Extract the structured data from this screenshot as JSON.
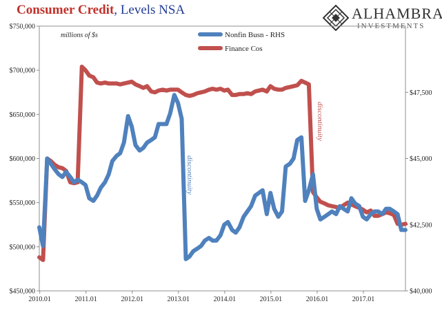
{
  "header": {
    "title_main": "Consumer Credit",
    "title_rest": ", Levels NSA"
  },
  "logo": {
    "name": "ALHAMBRA",
    "subtitle": "INVESTMENTS",
    "icon": "alhambra-diamond-lattice-icon"
  },
  "chart_data": {
    "type": "line",
    "unit_note": "millions of $s",
    "left_axis": {
      "min": 450000,
      "max": 750000,
      "ticks": [
        "$450,000",
        "$500,000",
        "$550,000",
        "$600,000",
        "$650,000",
        "$700,000",
        "$750,000"
      ]
    },
    "right_axis": {
      "min": 40000,
      "max": 50000,
      "ticks": [
        "$40,000",
        "$42,500",
        "$45,000",
        "$47,500"
      ]
    },
    "x_axis": {
      "start_year": 2010,
      "end_year": 2017.92,
      "ticks": [
        "2010.01",
        "2011.01",
        "2012.01",
        "2013.01",
        "2014.01",
        "2015.01",
        "2016.01",
        "2017.01"
      ]
    },
    "legend": {
      "placement": "top-center",
      "entries": [
        "Nonfin Busn - RHS",
        "Finance Cos"
      ]
    },
    "annotations": [
      {
        "text": "discontinuity",
        "color": "#4f81bd"
      },
      {
        "text": "discontinuity",
        "color": "#c0504d"
      }
    ],
    "colors": {
      "nonfin": "#4f81bd",
      "finance": "#c0504d"
    },
    "series": [
      {
        "name": "Finance Cos",
        "axis": "left",
        "points": [
          [
            2010.0,
            488000
          ],
          [
            2010.08,
            485000
          ],
          [
            2010.17,
            600000
          ],
          [
            2010.25,
            597000
          ],
          [
            2010.33,
            593000
          ],
          [
            2010.42,
            590000
          ],
          [
            2010.5,
            589000
          ],
          [
            2010.58,
            586000
          ],
          [
            2010.67,
            573000
          ],
          [
            2010.75,
            572000
          ],
          [
            2010.83,
            573000
          ],
          [
            2010.92,
            704000
          ],
          [
            2011.0,
            700000
          ],
          [
            2011.08,
            694000
          ],
          [
            2011.17,
            692000
          ],
          [
            2011.25,
            686000
          ],
          [
            2011.33,
            685000
          ],
          [
            2011.42,
            686000
          ],
          [
            2011.5,
            685000
          ],
          [
            2011.58,
            685000
          ],
          [
            2011.67,
            685000
          ],
          [
            2011.75,
            684000
          ],
          [
            2011.83,
            685000
          ],
          [
            2011.92,
            686000
          ],
          [
            2012.0,
            687000
          ],
          [
            2012.08,
            684000
          ],
          [
            2012.17,
            682000
          ],
          [
            2012.25,
            680000
          ],
          [
            2012.33,
            682000
          ],
          [
            2012.42,
            676000
          ],
          [
            2012.5,
            675000
          ],
          [
            2012.58,
            677000
          ],
          [
            2012.67,
            678000
          ],
          [
            2012.75,
            677000
          ],
          [
            2012.83,
            678000
          ],
          [
            2012.92,
            678000
          ],
          [
            2013.0,
            678000
          ],
          [
            2013.08,
            675000
          ],
          [
            2013.17,
            672000
          ],
          [
            2013.25,
            671000
          ],
          [
            2013.33,
            672000
          ],
          [
            2013.42,
            674000
          ],
          [
            2013.5,
            675000
          ],
          [
            2013.58,
            676000
          ],
          [
            2013.67,
            678000
          ],
          [
            2013.75,
            679000
          ],
          [
            2013.83,
            678000
          ],
          [
            2013.92,
            679000
          ],
          [
            2014.0,
            677000
          ],
          [
            2014.08,
            678000
          ],
          [
            2014.17,
            672000
          ],
          [
            2014.25,
            672000
          ],
          [
            2014.33,
            673000
          ],
          [
            2014.42,
            673000
          ],
          [
            2014.5,
            674000
          ],
          [
            2014.58,
            673000
          ],
          [
            2014.67,
            676000
          ],
          [
            2014.75,
            677000
          ],
          [
            2014.83,
            678000
          ],
          [
            2014.92,
            676000
          ],
          [
            2015.0,
            682000
          ],
          [
            2015.08,
            679000
          ],
          [
            2015.17,
            678000
          ],
          [
            2015.25,
            678000
          ],
          [
            2015.33,
            680000
          ],
          [
            2015.42,
            681000
          ],
          [
            2015.5,
            682000
          ],
          [
            2015.58,
            683000
          ],
          [
            2015.67,
            688000
          ],
          [
            2015.75,
            686000
          ],
          [
            2015.83,
            684000
          ],
          [
            2015.92,
            562000
          ],
          [
            2016.0,
            556000
          ],
          [
            2016.08,
            551000
          ],
          [
            2016.17,
            549000
          ],
          [
            2016.25,
            547000
          ],
          [
            2016.33,
            546000
          ],
          [
            2016.42,
            545000
          ],
          [
            2016.5,
            544000
          ],
          [
            2016.58,
            547000
          ],
          [
            2016.67,
            550000
          ],
          [
            2016.75,
            548000
          ],
          [
            2016.83,
            546000
          ],
          [
            2016.92,
            544000
          ],
          [
            2017.0,
            542000
          ],
          [
            2017.08,
            539000
          ],
          [
            2017.17,
            541000
          ],
          [
            2017.25,
            535000
          ],
          [
            2017.33,
            535000
          ],
          [
            2017.42,
            537000
          ],
          [
            2017.5,
            539000
          ],
          [
            2017.58,
            538000
          ],
          [
            2017.67,
            536000
          ],
          [
            2017.75,
            526000
          ],
          [
            2017.83,
            525000
          ],
          [
            2017.92,
            526000
          ]
        ]
      },
      {
        "name": "Nonfin Busn - RHS",
        "axis": "right",
        "points": [
          [
            2010.0,
            42400
          ],
          [
            2010.08,
            41700
          ],
          [
            2010.17,
            45000
          ],
          [
            2010.25,
            44800
          ],
          [
            2010.33,
            44600
          ],
          [
            2010.42,
            44400
          ],
          [
            2010.5,
            44300
          ],
          [
            2010.58,
            44500
          ],
          [
            2010.67,
            44300
          ],
          [
            2010.75,
            44100
          ],
          [
            2010.83,
            44200
          ],
          [
            2010.92,
            44100
          ],
          [
            2011.0,
            44000
          ],
          [
            2011.08,
            43500
          ],
          [
            2011.17,
            43400
          ],
          [
            2011.25,
            43600
          ],
          [
            2011.33,
            43900
          ],
          [
            2011.42,
            44100
          ],
          [
            2011.5,
            44400
          ],
          [
            2011.58,
            44900
          ],
          [
            2011.67,
            45100
          ],
          [
            2011.75,
            45200
          ],
          [
            2011.83,
            45600
          ],
          [
            2011.92,
            46600
          ],
          [
            2012.0,
            46200
          ],
          [
            2012.08,
            45500
          ],
          [
            2012.17,
            45300
          ],
          [
            2012.25,
            45400
          ],
          [
            2012.33,
            45600
          ],
          [
            2012.42,
            45700
          ],
          [
            2012.5,
            45800
          ],
          [
            2012.58,
            46300
          ],
          [
            2012.67,
            46300
          ],
          [
            2012.75,
            46300
          ],
          [
            2012.83,
            46700
          ],
          [
            2012.92,
            47400
          ],
          [
            2013.0,
            47100
          ],
          [
            2013.08,
            46500
          ],
          [
            2013.17,
            41200
          ],
          [
            2013.25,
            41300
          ],
          [
            2013.33,
            41500
          ],
          [
            2013.42,
            41600
          ],
          [
            2013.5,
            41700
          ],
          [
            2013.58,
            41900
          ],
          [
            2013.67,
            42000
          ],
          [
            2013.75,
            41900
          ],
          [
            2013.83,
            41900
          ],
          [
            2013.92,
            42100
          ],
          [
            2014.0,
            42500
          ],
          [
            2014.08,
            42600
          ],
          [
            2014.17,
            42300
          ],
          [
            2014.25,
            42200
          ],
          [
            2014.33,
            42400
          ],
          [
            2014.42,
            42800
          ],
          [
            2014.5,
            43000
          ],
          [
            2014.58,
            43200
          ],
          [
            2014.67,
            43600
          ],
          [
            2014.75,
            43700
          ],
          [
            2014.83,
            43800
          ],
          [
            2014.92,
            42900
          ],
          [
            2015.0,
            43700
          ],
          [
            2015.08,
            43100
          ],
          [
            2015.17,
            42800
          ],
          [
            2015.25,
            43000
          ],
          [
            2015.33,
            44700
          ],
          [
            2015.42,
            44800
          ],
          [
            2015.5,
            45000
          ],
          [
            2015.58,
            45700
          ],
          [
            2015.67,
            45800
          ],
          [
            2015.75,
            43400
          ],
          [
            2015.83,
            43800
          ],
          [
            2015.92,
            44400
          ],
          [
            2016.0,
            43100
          ],
          [
            2016.08,
            42700
          ],
          [
            2016.17,
            42800
          ],
          [
            2016.25,
            42900
          ],
          [
            2016.33,
            43000
          ],
          [
            2016.42,
            42900
          ],
          [
            2016.5,
            43200
          ],
          [
            2016.58,
            43100
          ],
          [
            2016.67,
            43000
          ],
          [
            2016.75,
            43500
          ],
          [
            2016.83,
            43300
          ],
          [
            2016.92,
            43200
          ],
          [
            2017.0,
            42800
          ],
          [
            2017.08,
            42700
          ],
          [
            2017.17,
            42900
          ],
          [
            2017.25,
            43000
          ],
          [
            2017.33,
            43000
          ],
          [
            2017.42,
            42900
          ],
          [
            2017.5,
            43100
          ],
          [
            2017.58,
            43100
          ],
          [
            2017.67,
            43000
          ],
          [
            2017.75,
            42900
          ],
          [
            2017.83,
            42300
          ],
          [
            2017.92,
            42300
          ]
        ]
      }
    ]
  }
}
